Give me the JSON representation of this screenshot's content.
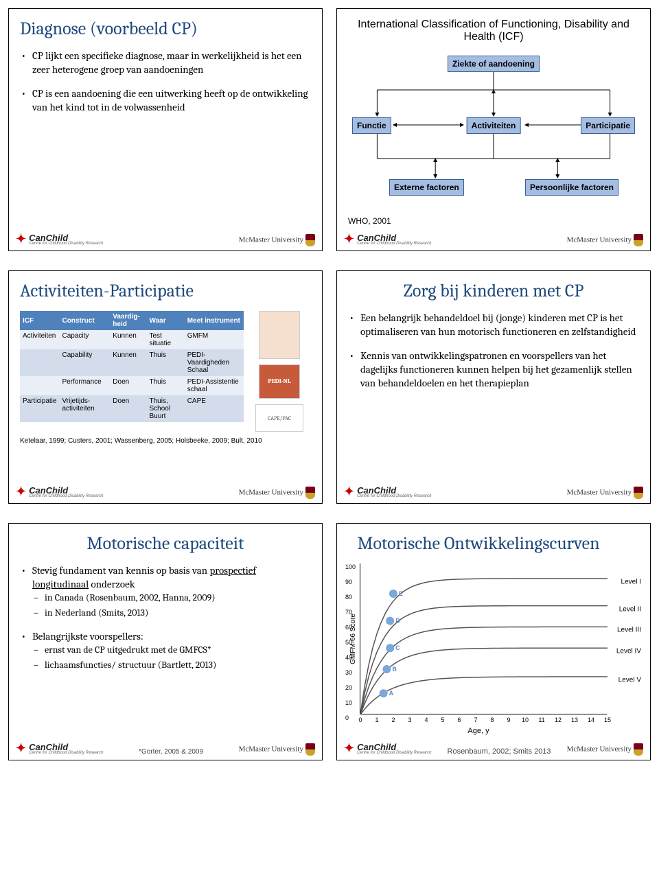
{
  "colors": {
    "heading": "#1f497d",
    "box_bg": "#a6bde2",
    "box_border": "#365f91",
    "table_header_bg": "#4f81bd",
    "table_row_bg": "#e9eef7",
    "table_row_alt_bg": "#d3dceb"
  },
  "slide1": {
    "title": "Diagnose (voorbeeld CP)",
    "bullets": [
      "CP lijkt een specifieke diagnose, maar in werkelijkheid is het een zeer heterogene groep van aandoeningen",
      "CP is een aandoening die een uitwerking heeft op de ontwikkeling van het kind tot in de volwassenheid"
    ]
  },
  "slide2": {
    "header": "International Classification of Functioning, Disability and Health (ICF)",
    "boxes": {
      "top": "Ziekte of aandoening",
      "functie": "Functie",
      "activiteiten": "Activiteiten",
      "participatie": "Participatie",
      "extern": "Externe factoren",
      "persoonlijk": "Persoonlijke factoren"
    },
    "who": "WHO, 2001"
  },
  "slide3": {
    "title": "Activiteiten-Participatie",
    "headers": [
      "ICF",
      "Construct",
      "Vaardig-heid",
      "Waar",
      "Meet instrument"
    ],
    "rows": [
      {
        "alt": false,
        "cells": [
          "Activiteiten",
          "Capacity",
          "Kunnen",
          "Test situatie",
          "GMFM"
        ]
      },
      {
        "alt": true,
        "cells": [
          "",
          "Capability",
          "Kunnen",
          "Thuis",
          "PEDI-Vaardigheden Schaal"
        ]
      },
      {
        "alt": false,
        "cells": [
          "",
          "Performance",
          "Doen",
          "Thuis",
          "PEDI-Assistentie schaal"
        ]
      },
      {
        "alt": true,
        "cells": [
          "Participatie",
          "Vrijetijds-activiteiten",
          "Doen",
          "Thuis, School Buurt",
          "CAPE"
        ]
      }
    ],
    "thumbs": {
      "pedi": "PEDI-NL",
      "cape": "CAPE/PAC"
    },
    "cite": "Ketelaar, 1999; Custers, 2001; Wassenberg, 2005; Holsbeeke, 2009; Bult, 2010"
  },
  "slide4": {
    "title": "Zorg bij kinderen met CP",
    "bullets": [
      "Een belangrijk behandeldoel bij (jonge) kinderen met CP is het optimaliseren van hun motorisch functioneren en zelfstandigheid",
      "Kennis van ontwikkelingspatronen en voorspellers van het dagelijks functioneren kunnen helpen bij het gezamenlijk stellen van behandeldoelen en het therapieplan"
    ]
  },
  "slide5": {
    "title": "Motorische capaciteit",
    "bullets": [
      {
        "text": "Stevig fundament van kennis op basis van prospectief longitudinaal onderzoek",
        "underline_phrase": "prospectief longitudinaal",
        "sub": [
          "in Canada (Rosenbaum, 2002, Hanna, 2009)",
          "in Nederland (Smits, 2013)"
        ]
      },
      {
        "text": "Belangrijkste voorspellers:",
        "sub": [
          "ernst van de CP uitgedrukt met de GMFCS*",
          "lichaamsfuncties/ structuur (Bartlett, 2013)"
        ]
      }
    ],
    "cite": "*Gorter, 2005 & 2009"
  },
  "slide6": {
    "title": "Motorische Ontwikkelingscurven",
    "chart": {
      "type": "line",
      "ylabel": "GMFM-66 Score",
      "xlabel": "Age, y",
      "ylim": [
        0,
        100
      ],
      "ytick_step": 10,
      "xlim": [
        0,
        15
      ],
      "xtick_step": 1,
      "background_color": "#ffffff",
      "axis_color": "#000000",
      "curve_color": "#555555",
      "curve_width": 1.5,
      "dot_colors": {
        "A": "#7aa8d8",
        "B": "#7aa8d8",
        "C": "#7aa8d8",
        "D": "#7aa8d8",
        "E": "#7aa8d8"
      },
      "dot_radius": 4,
      "curves": [
        {
          "label": "Level I",
          "asymptote": 90,
          "k": 0.9,
          "dot_letter": "E",
          "dot_x": 2,
          "dot_y": 80
        },
        {
          "label": "Level II",
          "asymptote": 72,
          "k": 0.85,
          "dot_letter": "D",
          "dot_x": 1.8,
          "dot_y": 62
        },
        {
          "label": "Level III",
          "asymptote": 58,
          "k": 0.75,
          "dot_letter": "C",
          "dot_x": 1.8,
          "dot_y": 44
        },
        {
          "label": "Level IV",
          "asymptote": 44,
          "k": 0.7,
          "dot_letter": "B",
          "dot_x": 1.6,
          "dot_y": 30
        },
        {
          "label": "Level V",
          "asymptote": 25,
          "k": 0.6,
          "dot_letter": "A",
          "dot_x": 1.4,
          "dot_y": 14
        }
      ]
    },
    "cite": "Rosenbaum, 2002; Smits 2013"
  },
  "common": {
    "canchild": "CanChild",
    "canchild_sub": "Centre for Childhood Disability Research",
    "mcmaster": "McMaster University"
  }
}
